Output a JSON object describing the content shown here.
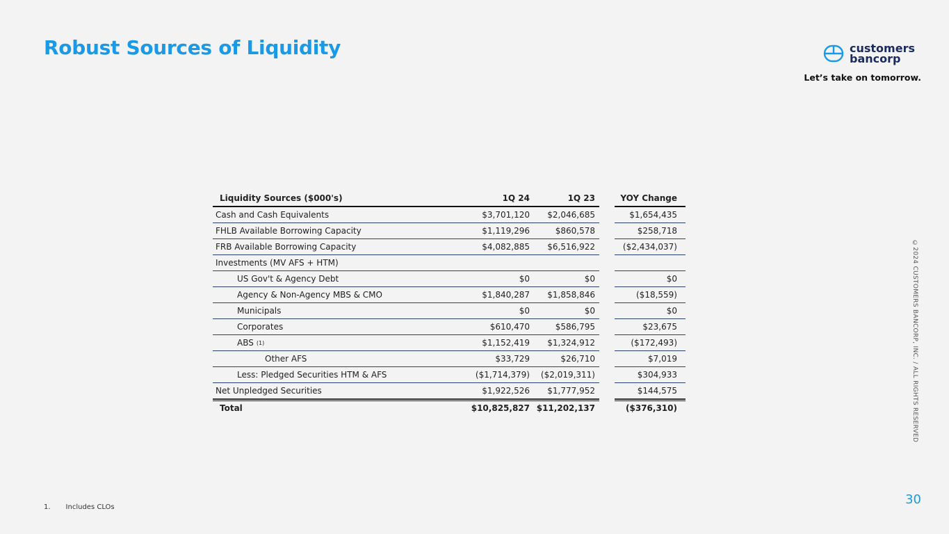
{
  "title": "Robust Sources of Liquidity",
  "logo": {
    "line1": "customers",
    "line2": "bancorp"
  },
  "tagline": "Let’s take on tomorrow.",
  "side_text": "©2024 CUSTOMERS BANCORP, INC. / ALL RIGHTS RESERVED",
  "page_number": "30",
  "footnote": {
    "number": "1.",
    "text": "Includes CLOs"
  },
  "table": {
    "headers": [
      "Liquidity Sources ($000's)",
      "1Q 24",
      "1Q 23",
      "YOY Change"
    ],
    "rows": [
      {
        "label": "Cash and Cash Equivalents",
        "indent": 0,
        "q24": "$3,701,120",
        "q23": "$2,046,685",
        "yoy": "$1,654,435"
      },
      {
        "label": "FHLB Available Borrowing Capacity",
        "indent": 0,
        "q24": "$1,119,296",
        "q23": "$860,578",
        "yoy": "$258,718"
      },
      {
        "label": "FRB Available Borrowing Capacity",
        "indent": 0,
        "q24": "$4,082,885",
        "q23": "$6,516,922",
        "yoy": "($2,434,037)"
      },
      {
        "label": "Investments (MV AFS + HTM)",
        "indent": 0,
        "q24": "",
        "q23": "",
        "yoy": ""
      },
      {
        "label": "US Gov't & Agency Debt",
        "indent": 1,
        "q24": "$0",
        "q23": "$0",
        "yoy": "$0"
      },
      {
        "label": "Agency & Non-Agency MBS & CMO",
        "indent": 1,
        "q24": "$1,840,287",
        "q23": "$1,858,846",
        "yoy": "($18,559)"
      },
      {
        "label": "Municipals",
        "indent": 1,
        "q24": "$0",
        "q23": "$0",
        "yoy": "$0"
      },
      {
        "label": "Corporates",
        "indent": 1,
        "q24": "$610,470",
        "q23": "$586,795",
        "yoy": "$23,675"
      },
      {
        "label": "ABS",
        "sup": "(1)",
        "indent": 1,
        "q24": "$1,152,419",
        "q23": "$1,324,912",
        "yoy": "($172,493)"
      },
      {
        "label": "Other AFS",
        "indent": 2,
        "q24": "$33,729",
        "q23": "$26,710",
        "yoy": "$7,019"
      },
      {
        "label": "Less: Pledged Securities HTM & AFS",
        "indent": 1,
        "q24": "($1,714,379)",
        "q23": "($2,019,311)",
        "yoy": "$304,933"
      },
      {
        "label": "Net Unpledged Securities",
        "indent": 0,
        "q24": "$1,922,526",
        "q23": "$1,777,952",
        "yoy": "$144,575"
      }
    ],
    "total": {
      "label": "Total",
      "q24": "$10,825,827",
      "q23": "$11,202,137",
      "yoy": "($376,310)"
    }
  },
  "colors": {
    "accent": "#1a9ae6",
    "brand_navy": "#1b2a5e"
  }
}
